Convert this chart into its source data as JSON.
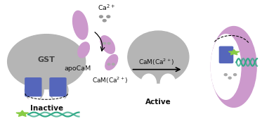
{
  "bg_color": "#ffffff",
  "gray_color": "#b5b5b5",
  "purple_light": "#cc99cc",
  "blue_color": "#5566bb",
  "green_star": "#88cc44",
  "green_helix": "#33aa88",
  "text_color": "#111111",
  "gray_text": "#666666",
  "dot_color": "#999999",
  "label_inactive": "Inactive",
  "label_active": "Active",
  "label_gst": "GST",
  "label_apocam": "apoCaM"
}
